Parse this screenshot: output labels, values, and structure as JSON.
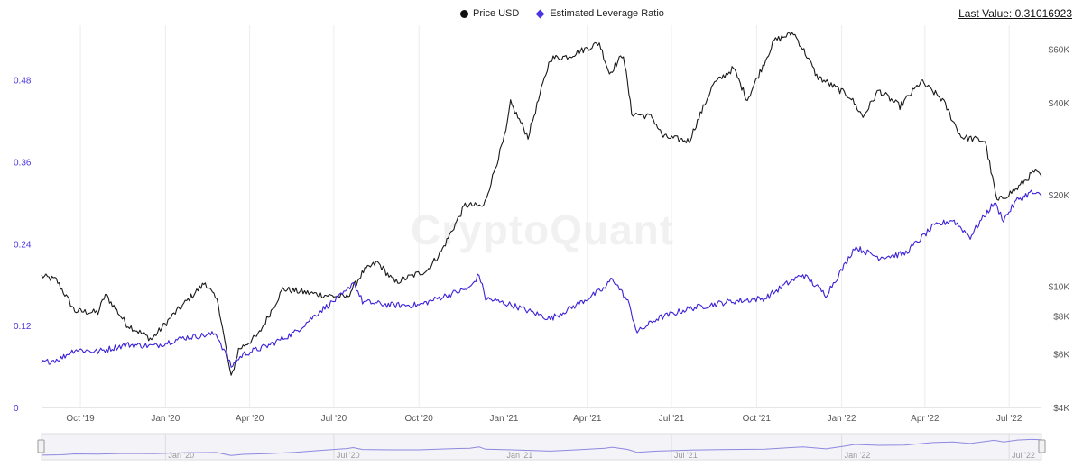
{
  "legend": {
    "price_label": "Price USD",
    "leverage_label": "Estimated Leverage Ratio"
  },
  "last_value_text": "Last Value: 0.31016923",
  "watermark": "CryptoQuant",
  "colors": {
    "price": "#1a1a1a",
    "leverage": "#3b22d9",
    "navigator": "#8f88e0"
  },
  "chart_data": {
    "type": "line",
    "x_ticks": [
      "Oct '19",
      "Jan '20",
      "Apr '20",
      "Jul '20",
      "Oct '20",
      "Jan '21",
      "Apr '21",
      "Jul '21",
      "Oct '21",
      "Jan '22",
      "Apr '22",
      "Jul '22"
    ],
    "navigator_ticks": [
      "Jan '20",
      "Jul '20",
      "Jan '21",
      "Jul '21",
      "Jan '22",
      "Jul '22"
    ],
    "y_left": {
      "ticks": [
        "0",
        "0.12",
        "0.24",
        "0.36",
        "0.48"
      ],
      "range": [
        0,
        0.56
      ]
    },
    "y_right": {
      "ticks": [
        "$4K",
        "$6K",
        "$8K",
        "$10K",
        "$20K",
        "$40K",
        "$60K"
      ],
      "scale": "log",
      "range": [
        4000,
        72000
      ]
    },
    "series": [
      {
        "name": "Price USD",
        "axis": "right",
        "points": [
          [
            "2019-08-20",
            10800
          ],
          [
            "2019-09-05",
            10500
          ],
          [
            "2019-09-25",
            8300
          ],
          [
            "2019-10-20",
            8200
          ],
          [
            "2019-10-28",
            9400
          ],
          [
            "2019-11-20",
            7500
          ],
          [
            "2019-12-17",
            6700
          ],
          [
            "2020-01-10",
            8100
          ],
          [
            "2020-02-13",
            10300
          ],
          [
            "2020-02-27",
            8800
          ],
          [
            "2020-03-12",
            5000
          ],
          [
            "2020-03-20",
            6200
          ],
          [
            "2020-04-10",
            6900
          ],
          [
            "2020-05-07",
            9800
          ],
          [
            "2020-06-15",
            9400
          ],
          [
            "2020-07-15",
            9200
          ],
          [
            "2020-08-02",
            11200
          ],
          [
            "2020-08-17",
            12000
          ],
          [
            "2020-09-05",
            10300
          ],
          [
            "2020-10-10",
            11300
          ],
          [
            "2020-10-25",
            13000
          ],
          [
            "2020-11-20",
            18500
          ],
          [
            "2020-12-10",
            18300
          ],
          [
            "2021-01-03",
            32000
          ],
          [
            "2021-01-08",
            40000
          ],
          [
            "2021-01-27",
            31000
          ],
          [
            "2021-02-20",
            56000
          ],
          [
            "2021-03-12",
            57000
          ],
          [
            "2021-04-14",
            63000
          ],
          [
            "2021-04-25",
            50000
          ],
          [
            "2021-05-10",
            58000
          ],
          [
            "2021-05-19",
            37000
          ],
          [
            "2021-06-10",
            36000
          ],
          [
            "2021-06-22",
            31000
          ],
          [
            "2021-07-20",
            30000
          ],
          [
            "2021-08-15",
            46000
          ],
          [
            "2021-09-06",
            52000
          ],
          [
            "2021-09-21",
            41000
          ],
          [
            "2021-10-20",
            64000
          ],
          [
            "2021-11-10",
            68000
          ],
          [
            "2021-11-26",
            56000
          ],
          [
            "2021-12-05",
            49000
          ],
          [
            "2022-01-10",
            42000
          ],
          [
            "2022-01-24",
            36000
          ],
          [
            "2022-02-10",
            44000
          ],
          [
            "2022-03-05",
            39000
          ],
          [
            "2022-03-28",
            47000
          ],
          [
            "2022-04-20",
            41000
          ],
          [
            "2022-05-10",
            31000
          ],
          [
            "2022-06-05",
            30000
          ],
          [
            "2022-06-18",
            19000
          ],
          [
            "2022-07-10",
            21000
          ],
          [
            "2022-07-28",
            23800
          ],
          [
            "2022-08-05",
            23000
          ]
        ]
      },
      {
        "name": "Estimated Leverage Ratio",
        "axis": "left",
        "points": [
          [
            "2019-08-20",
            0.065
          ],
          [
            "2019-09-10",
            0.072
          ],
          [
            "2019-09-25",
            0.085
          ],
          [
            "2019-10-20",
            0.082
          ],
          [
            "2019-11-20",
            0.092
          ],
          [
            "2019-12-20",
            0.09
          ],
          [
            "2020-01-20",
            0.102
          ],
          [
            "2020-02-25",
            0.108
          ],
          [
            "2020-03-12",
            0.06
          ],
          [
            "2020-03-25",
            0.078
          ],
          [
            "2020-04-20",
            0.09
          ],
          [
            "2020-05-20",
            0.11
          ],
          [
            "2020-06-15",
            0.14
          ],
          [
            "2020-07-15",
            0.17
          ],
          [
            "2020-07-22",
            0.185
          ],
          [
            "2020-08-01",
            0.155
          ],
          [
            "2020-09-01",
            0.15
          ],
          [
            "2020-10-01",
            0.15
          ],
          [
            "2020-11-01",
            0.165
          ],
          [
            "2020-11-25",
            0.175
          ],
          [
            "2020-12-05",
            0.195
          ],
          [
            "2020-12-12",
            0.16
          ],
          [
            "2021-01-10",
            0.15
          ],
          [
            "2021-02-20",
            0.13
          ],
          [
            "2021-03-20",
            0.15
          ],
          [
            "2021-04-20",
            0.175
          ],
          [
            "2021-04-28",
            0.19
          ],
          [
            "2021-05-15",
            0.155
          ],
          [
            "2021-05-25",
            0.11
          ],
          [
            "2021-06-15",
            0.13
          ],
          [
            "2021-07-20",
            0.145
          ],
          [
            "2021-09-01",
            0.155
          ],
          [
            "2021-10-10",
            0.16
          ],
          [
            "2021-11-01",
            0.18
          ],
          [
            "2021-11-20",
            0.195
          ],
          [
            "2021-12-15",
            0.165
          ],
          [
            "2022-01-05",
            0.21
          ],
          [
            "2022-01-15",
            0.235
          ],
          [
            "2022-02-10",
            0.22
          ],
          [
            "2022-03-10",
            0.225
          ],
          [
            "2022-04-10",
            0.265
          ],
          [
            "2022-05-01",
            0.275
          ],
          [
            "2022-05-20",
            0.25
          ],
          [
            "2022-06-01",
            0.275
          ],
          [
            "2022-06-15",
            0.3
          ],
          [
            "2022-06-25",
            0.275
          ],
          [
            "2022-07-10",
            0.305
          ],
          [
            "2022-07-25",
            0.315
          ],
          [
            "2022-08-05",
            0.31
          ]
        ]
      }
    ],
    "grid": "vertical",
    "legend_position": "top-center"
  }
}
